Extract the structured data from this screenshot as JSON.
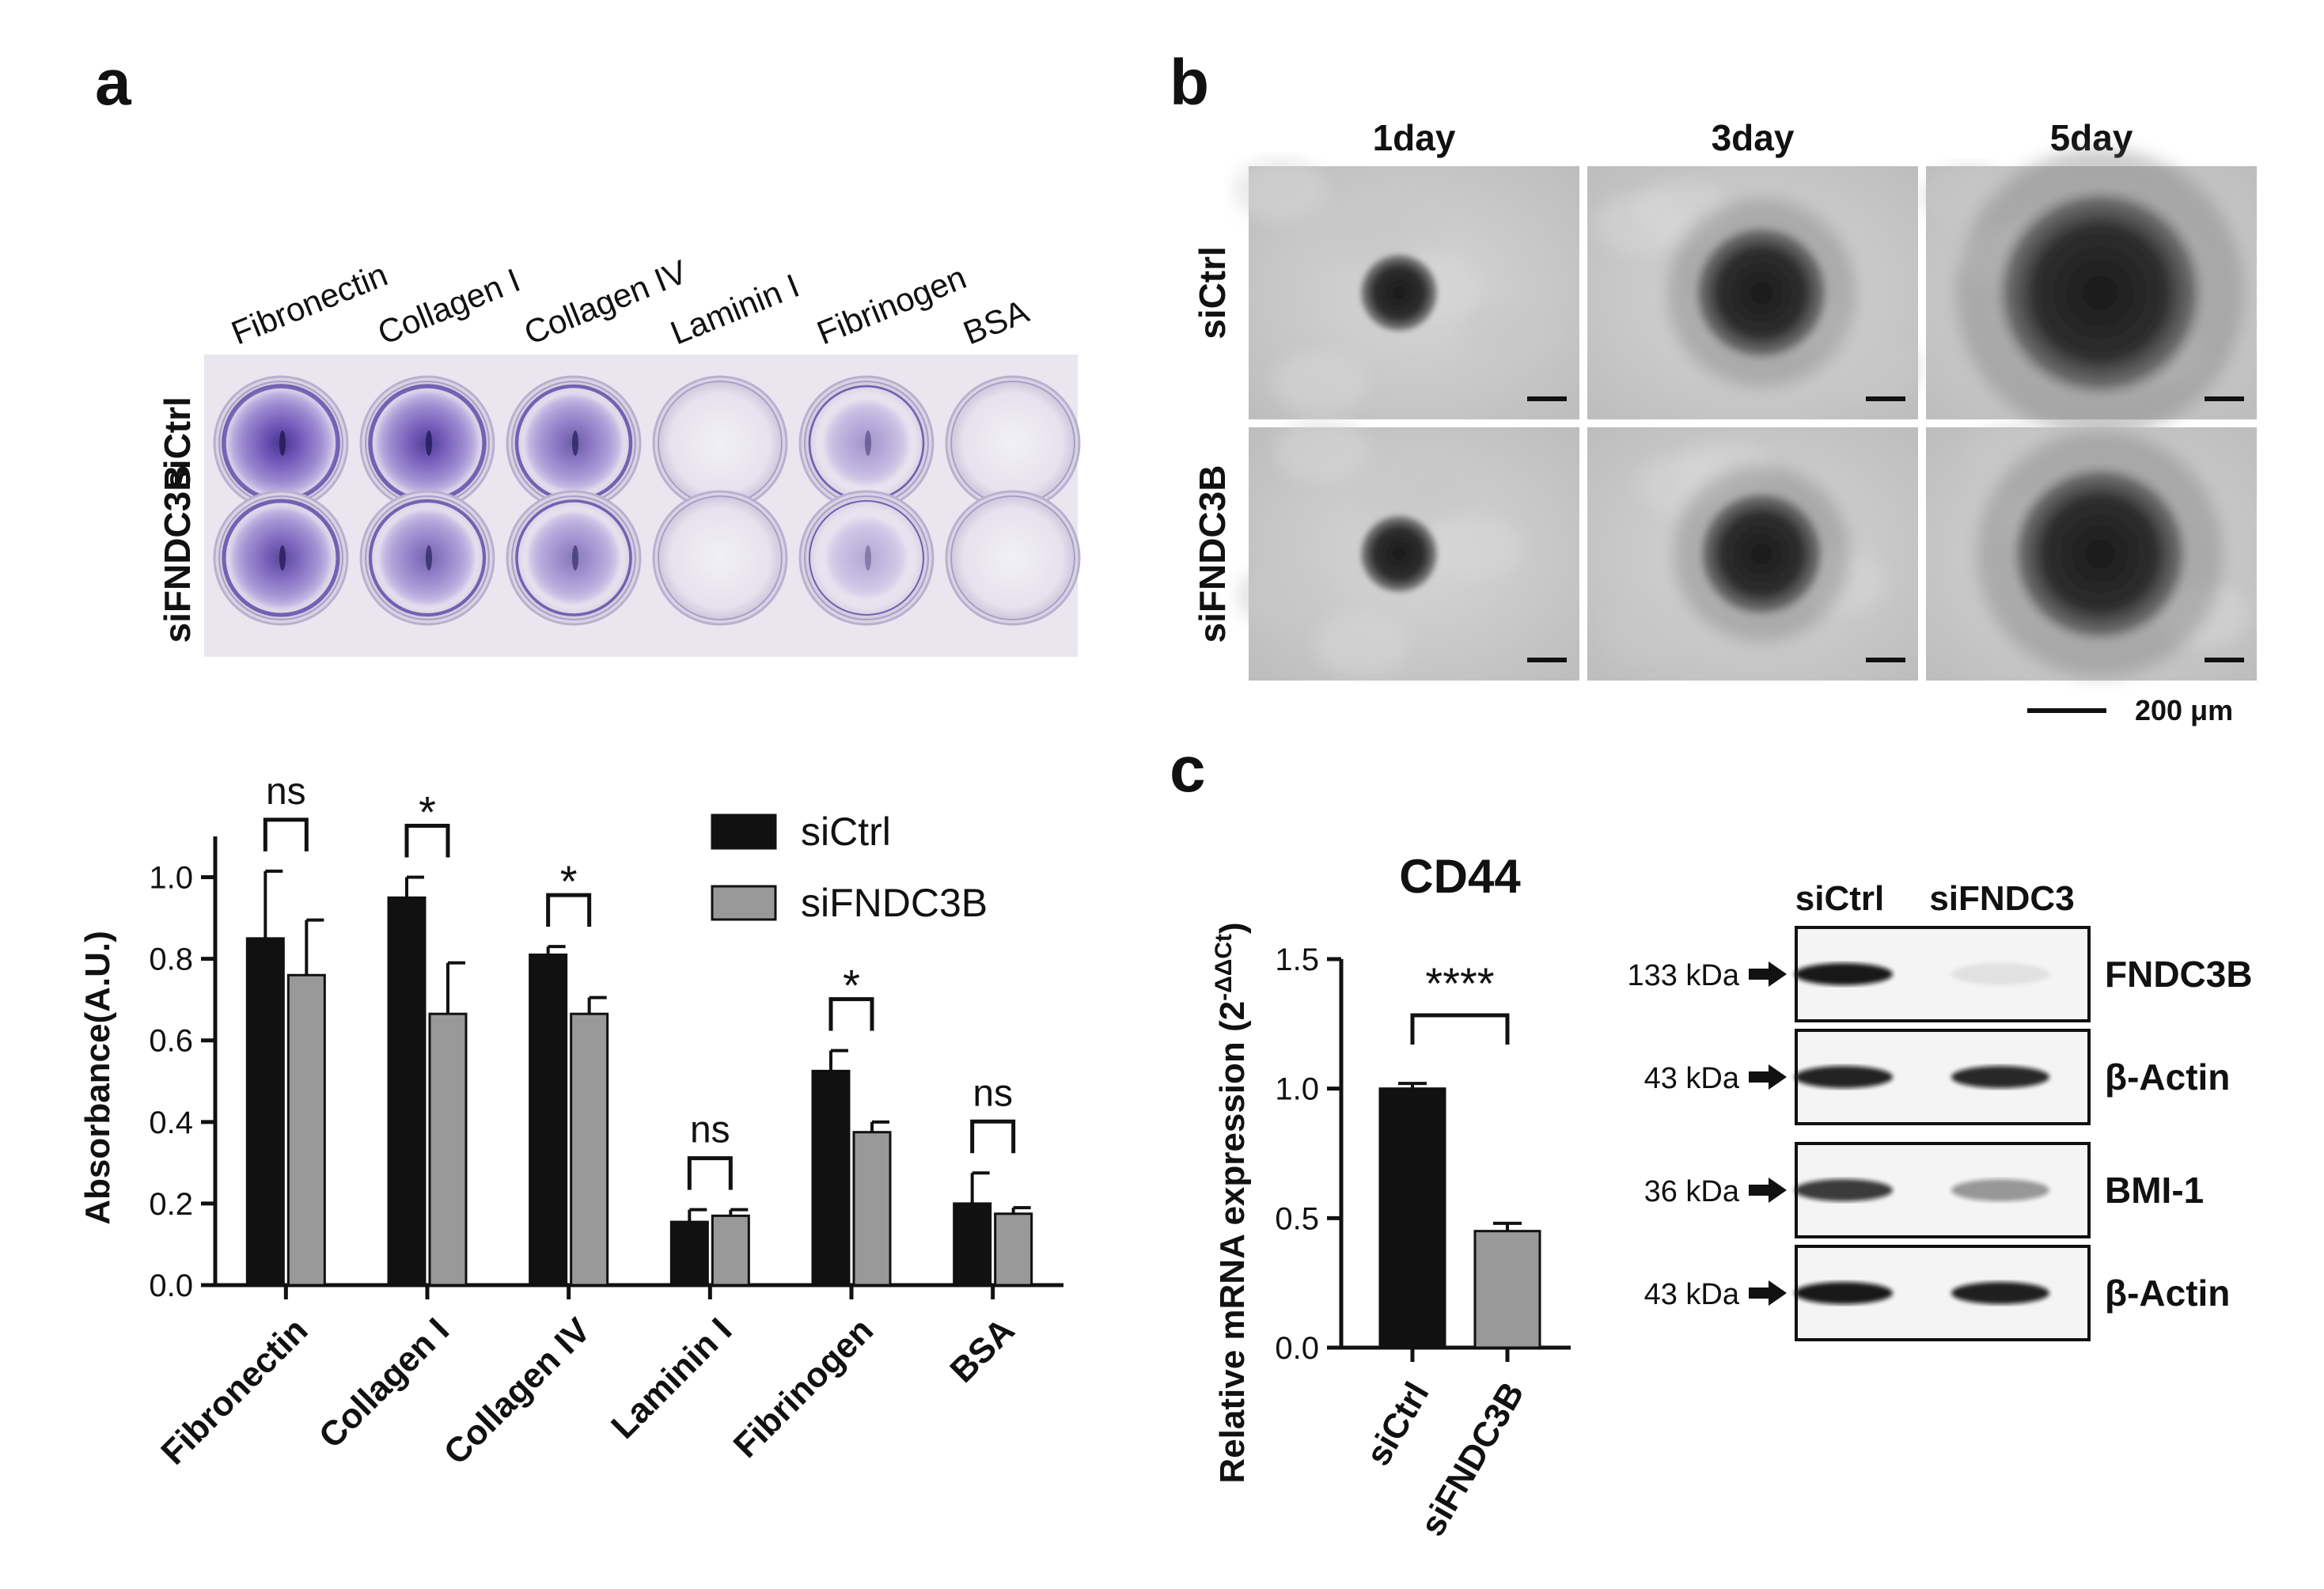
{
  "panels": {
    "a": "a",
    "b": "b",
    "c": "c"
  },
  "plate": {
    "well_labels": [
      "Fibronectin",
      "Collagen I",
      "Collagen IV",
      "Laminin I",
      "Fibrinogen",
      "BSA"
    ],
    "row_labels": [
      "siCtrl",
      "siFNDC3B"
    ],
    "stain_levels": [
      [
        0.95,
        0.9,
        0.75,
        0.05,
        0.45,
        0.03
      ],
      [
        0.85,
        0.7,
        0.6,
        0.05,
        0.35,
        0.03
      ]
    ]
  },
  "spheroid": {
    "columns": [
      "1day",
      "3day",
      "5day"
    ],
    "rows": [
      "siCtrl",
      "siFNDC3B"
    ],
    "scale_label": "200 μm"
  },
  "chart_data": [
    {
      "type": "bar",
      "panel": "a",
      "categories": [
        "Fibronectin",
        "Collagen I",
        "Collagen IV",
        "Laminin I",
        "Fibrinogen",
        "BSA"
      ],
      "series": [
        {
          "name": "siCtrl",
          "color": "#111111",
          "values": [
            0.85,
            0.95,
            0.81,
            0.155,
            0.525,
            0.2
          ],
          "errors": [
            0.165,
            0.05,
            0.02,
            0.03,
            0.05,
            0.075
          ]
        },
        {
          "name": "siFNDC3B",
          "color": "#999999",
          "values": [
            0.76,
            0.665,
            0.665,
            0.17,
            0.375,
            0.175
          ],
          "errors": [
            0.135,
            0.125,
            0.04,
            0.015,
            0.025,
            0.015
          ]
        }
      ],
      "significance": [
        "ns",
        "*",
        "*",
        "ns",
        "*",
        "ns"
      ],
      "ylabel": "Absorbance(A.U.)",
      "ylim": [
        0,
        1.1
      ],
      "yticks": [
        "0.0",
        "0.2",
        "0.4",
        "0.6",
        "0.8",
        "1.0"
      ],
      "legend": "top-right"
    },
    {
      "type": "bar",
      "panel": "c",
      "title": "CD44",
      "categories": [
        "siCtrl",
        "siFNDC3B"
      ],
      "values": [
        1.0,
        0.45
      ],
      "errors": [
        0.02,
        0.03
      ],
      "colors": [
        "#111111",
        "#999999"
      ],
      "significance": "****",
      "ylabel_main": "Relative mRNA expression (2",
      "ylabel_sup": "-ΔΔCt",
      "ylabel_end": ")",
      "ylim": [
        0,
        1.5
      ],
      "yticks": [
        "0.0",
        "0.5",
        "1.0",
        "1.5"
      ]
    }
  ],
  "western": {
    "columns": [
      "siCtrl",
      "siFNDC3"
    ],
    "rows": [
      {
        "kda": "133 kDa",
        "label": "FNDC3B",
        "intensity": [
          0.95,
          0.08
        ]
      },
      {
        "kda": "43 kDa",
        "label": "β-Actin",
        "intensity": [
          0.9,
          0.88
        ]
      },
      {
        "kda": "36 kDa",
        "label": "BMI-1",
        "intensity": [
          0.8,
          0.4
        ]
      },
      {
        "kda": "43 kDa",
        "label": "β-Actin",
        "intensity": [
          0.95,
          0.92
        ]
      }
    ]
  }
}
